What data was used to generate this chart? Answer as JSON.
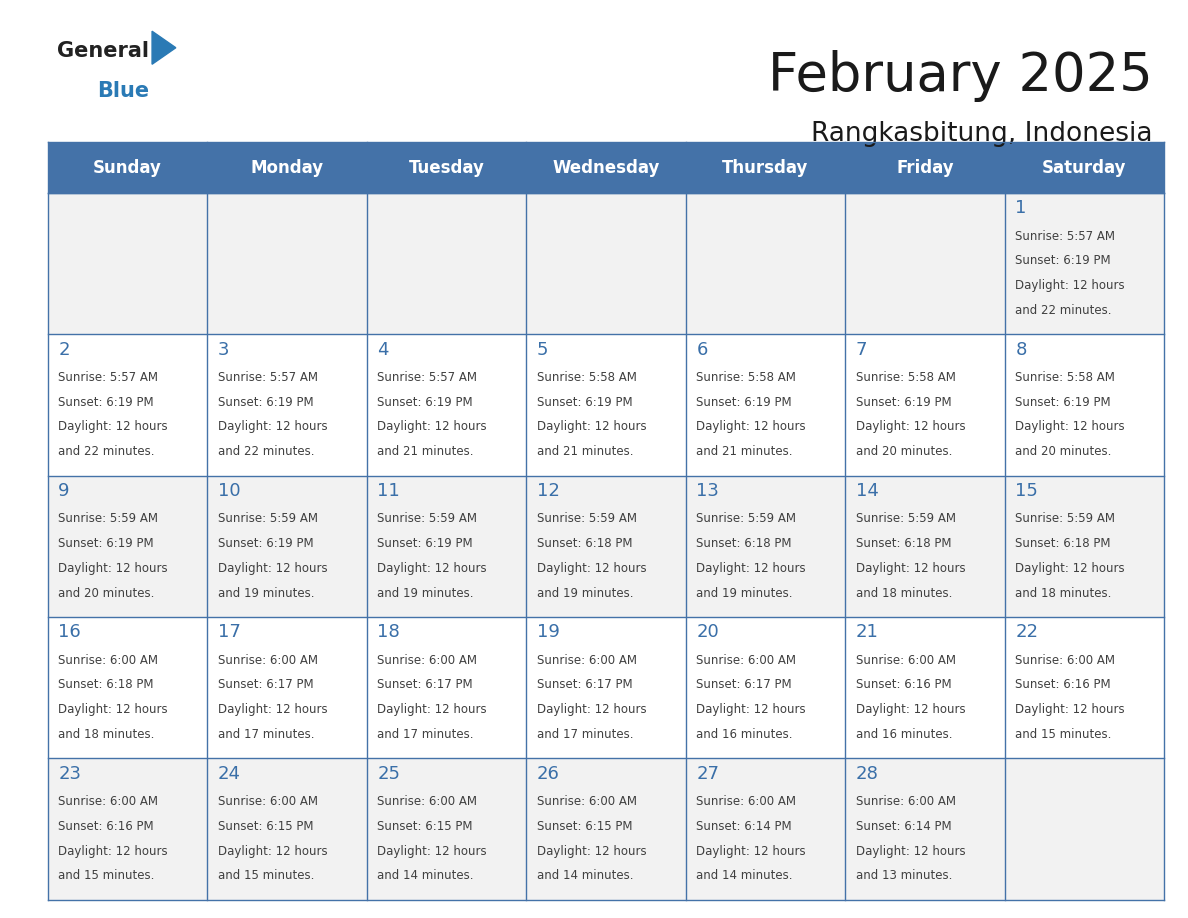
{
  "title": "February 2025",
  "subtitle": "Rangkasbitung, Indonesia",
  "header_bg": "#4472a8",
  "header_text_color": "#ffffff",
  "cell_bg_odd": "#f2f2f2",
  "cell_bg_even": "#ffffff",
  "day_number_color": "#3a6fa8",
  "detail_text_color": "#404040",
  "border_color": "#4472a8",
  "days_of_week": [
    "Sunday",
    "Monday",
    "Tuesday",
    "Wednesday",
    "Thursday",
    "Friday",
    "Saturday"
  ],
  "logo_general_color": "#222222",
  "logo_blue_color": "#2a7ab5",
  "calendar_data": [
    [
      null,
      null,
      null,
      null,
      null,
      null,
      {
        "day": 1,
        "sunrise": "5:57 AM",
        "sunset": "6:19 PM",
        "daylight": "12 hours\nand 22 minutes."
      }
    ],
    [
      {
        "day": 2,
        "sunrise": "5:57 AM",
        "sunset": "6:19 PM",
        "daylight": "12 hours\nand 22 minutes."
      },
      {
        "day": 3,
        "sunrise": "5:57 AM",
        "sunset": "6:19 PM",
        "daylight": "12 hours\nand 22 minutes."
      },
      {
        "day": 4,
        "sunrise": "5:57 AM",
        "sunset": "6:19 PM",
        "daylight": "12 hours\nand 21 minutes."
      },
      {
        "day": 5,
        "sunrise": "5:58 AM",
        "sunset": "6:19 PM",
        "daylight": "12 hours\nand 21 minutes."
      },
      {
        "day": 6,
        "sunrise": "5:58 AM",
        "sunset": "6:19 PM",
        "daylight": "12 hours\nand 21 minutes."
      },
      {
        "day": 7,
        "sunrise": "5:58 AM",
        "sunset": "6:19 PM",
        "daylight": "12 hours\nand 20 minutes."
      },
      {
        "day": 8,
        "sunrise": "5:58 AM",
        "sunset": "6:19 PM",
        "daylight": "12 hours\nand 20 minutes."
      }
    ],
    [
      {
        "day": 9,
        "sunrise": "5:59 AM",
        "sunset": "6:19 PM",
        "daylight": "12 hours\nand 20 minutes."
      },
      {
        "day": 10,
        "sunrise": "5:59 AM",
        "sunset": "6:19 PM",
        "daylight": "12 hours\nand 19 minutes."
      },
      {
        "day": 11,
        "sunrise": "5:59 AM",
        "sunset": "6:19 PM",
        "daylight": "12 hours\nand 19 minutes."
      },
      {
        "day": 12,
        "sunrise": "5:59 AM",
        "sunset": "6:18 PM",
        "daylight": "12 hours\nand 19 minutes."
      },
      {
        "day": 13,
        "sunrise": "5:59 AM",
        "sunset": "6:18 PM",
        "daylight": "12 hours\nand 19 minutes."
      },
      {
        "day": 14,
        "sunrise": "5:59 AM",
        "sunset": "6:18 PM",
        "daylight": "12 hours\nand 18 minutes."
      },
      {
        "day": 15,
        "sunrise": "5:59 AM",
        "sunset": "6:18 PM",
        "daylight": "12 hours\nand 18 minutes."
      }
    ],
    [
      {
        "day": 16,
        "sunrise": "6:00 AM",
        "sunset": "6:18 PM",
        "daylight": "12 hours\nand 18 minutes."
      },
      {
        "day": 17,
        "sunrise": "6:00 AM",
        "sunset": "6:17 PM",
        "daylight": "12 hours\nand 17 minutes."
      },
      {
        "day": 18,
        "sunrise": "6:00 AM",
        "sunset": "6:17 PM",
        "daylight": "12 hours\nand 17 minutes."
      },
      {
        "day": 19,
        "sunrise": "6:00 AM",
        "sunset": "6:17 PM",
        "daylight": "12 hours\nand 17 minutes."
      },
      {
        "day": 20,
        "sunrise": "6:00 AM",
        "sunset": "6:17 PM",
        "daylight": "12 hours\nand 16 minutes."
      },
      {
        "day": 21,
        "sunrise": "6:00 AM",
        "sunset": "6:16 PM",
        "daylight": "12 hours\nand 16 minutes."
      },
      {
        "day": 22,
        "sunrise": "6:00 AM",
        "sunset": "6:16 PM",
        "daylight": "12 hours\nand 15 minutes."
      }
    ],
    [
      {
        "day": 23,
        "sunrise": "6:00 AM",
        "sunset": "6:16 PM",
        "daylight": "12 hours\nand 15 minutes."
      },
      {
        "day": 24,
        "sunrise": "6:00 AM",
        "sunset": "6:15 PM",
        "daylight": "12 hours\nand 15 minutes."
      },
      {
        "day": 25,
        "sunrise": "6:00 AM",
        "sunset": "6:15 PM",
        "daylight": "12 hours\nand 14 minutes."
      },
      {
        "day": 26,
        "sunrise": "6:00 AM",
        "sunset": "6:15 PM",
        "daylight": "12 hours\nand 14 minutes."
      },
      {
        "day": 27,
        "sunrise": "6:00 AM",
        "sunset": "6:14 PM",
        "daylight": "12 hours\nand 14 minutes."
      },
      {
        "day": 28,
        "sunrise": "6:00 AM",
        "sunset": "6:14 PM",
        "daylight": "12 hours\nand 13 minutes."
      },
      null
    ]
  ]
}
